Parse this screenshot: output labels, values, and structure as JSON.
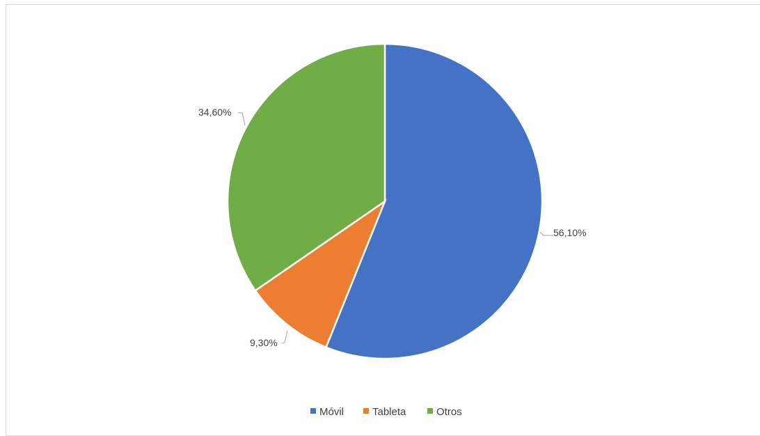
{
  "chart_data": {
    "type": "pie",
    "title": "",
    "categories": [
      "Móvil",
      "Tableta",
      "Otros"
    ],
    "values": [
      56.1,
      9.3,
      34.6
    ],
    "data_labels": [
      "56,10%",
      "9,30%",
      "34,60%"
    ],
    "colors": [
      "#4472C4",
      "#ED7D31",
      "#70AD47"
    ],
    "legend": {
      "position": "bottom",
      "entries": [
        "Móvil",
        "Tableta",
        "Otros"
      ]
    },
    "start_angle": "12 o'clock",
    "direction": "clockwise"
  }
}
